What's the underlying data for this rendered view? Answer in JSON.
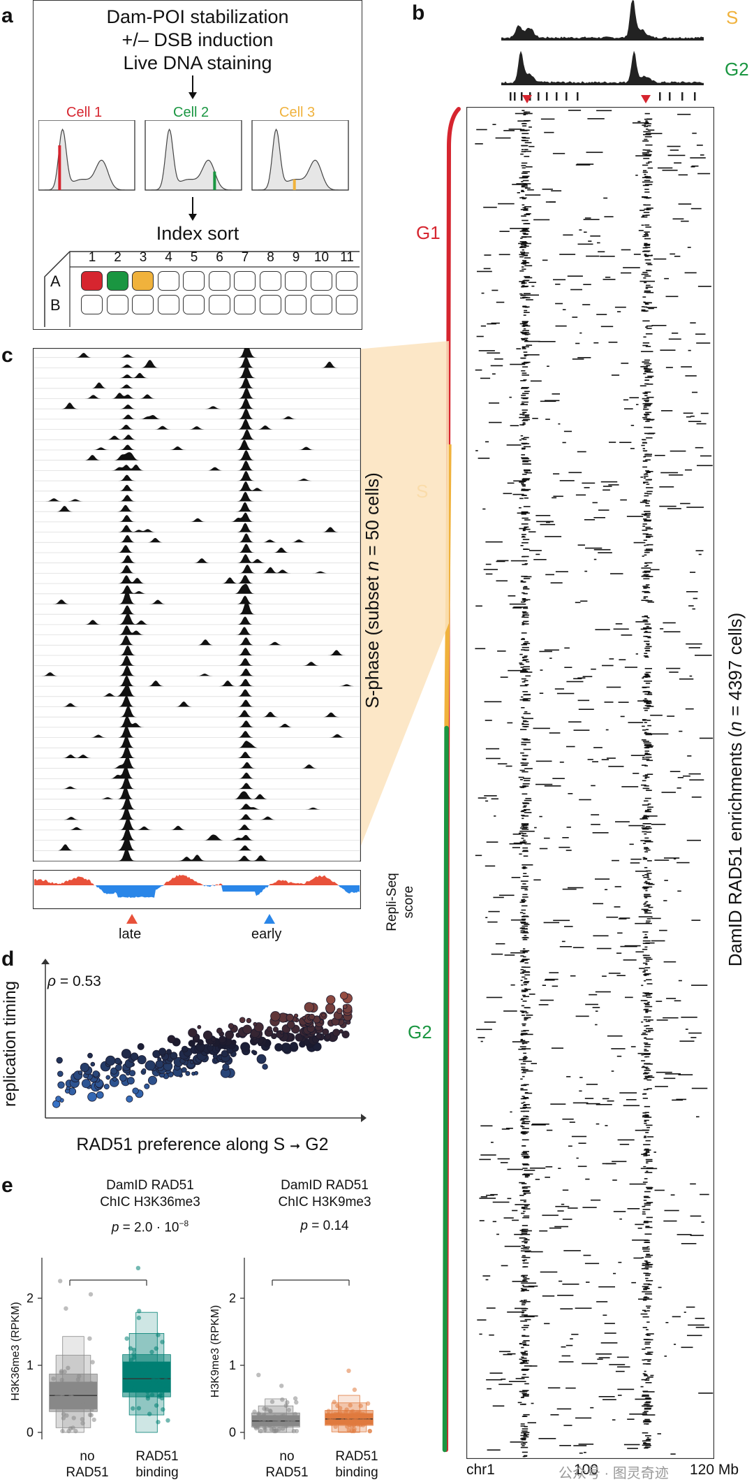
{
  "panels": {
    "a": "a",
    "b": "b",
    "c": "c",
    "d": "d",
    "e": "e"
  },
  "panel_a": {
    "step1": "Dam-POI stabilization",
    "step2": "+/– DSB induction",
    "step3": "Live DNA staining",
    "cells": [
      {
        "label": "Cell 1",
        "color": "#d6252f",
        "marker": 0.22
      },
      {
        "label": "Cell 2",
        "color": "#1a9641",
        "marker": 0.72
      },
      {
        "label": "Cell 3",
        "color": "#f0b23c",
        "marker": 0.44
      }
    ],
    "index_sort": "Index sort",
    "plate_columns": [
      "1",
      "2",
      "3",
      "4",
      "5",
      "6",
      "7",
      "8",
      "9",
      "10",
      "11"
    ],
    "plate_rows": [
      "A",
      "B"
    ]
  },
  "panel_b": {
    "phase_labels": [
      {
        "label": "S",
        "color": "#f0b23c"
      },
      {
        "label": "G2",
        "color": "#1a9641"
      }
    ],
    "bar_labels": [
      {
        "label": "G1",
        "color": "#d6252f"
      },
      {
        "label": "S",
        "color": "#f0b23c"
      },
      {
        "label": "G2",
        "color": "#1a9641"
      }
    ],
    "y_axis_label": "DamID RAD51 enrichments (n = 4397 cells)",
    "y_axis_prefix": "DamID RAD51 enrichments (",
    "y_axis_n": "n",
    "y_axis_suffix": " = 4397 cells)",
    "x_ticks": [
      "chr1",
      "100",
      "120 Mb"
    ]
  },
  "panel_c": {
    "side_label_prefix": "S-phase (subset ",
    "side_label_n": "n",
    "side_label_suffix": " = 50 cells)",
    "repli_label_1": "Repli-Seq",
    "repli_label_2": "score",
    "late": "late",
    "early": "early",
    "late_color": "#e8513a",
    "early_color": "#2a86e8"
  },
  "chart_data": [
    {
      "type": "scatter",
      "panel": "d",
      "title": "",
      "xlabel": "RAD51 preference along S → G2",
      "ylabel": "replication timing",
      "annotation": "ρ = 0.53",
      "rho_symbol": "ρ",
      "rho_value": " = 0.53",
      "xlabel_main": "RAD51 preference along S",
      "xlabel_end": "G2",
      "xlim": [
        0,
        1
      ],
      "ylim": [
        0,
        1
      ],
      "color_scale": [
        "#3b7bd4",
        "#1a1a2e",
        "#c8614a"
      ]
    },
    {
      "type": "boxplot",
      "panel": "e-left",
      "title_line1": "DamID RAD51",
      "title_line2": "ChIC H3K36me3",
      "p_prefix": "p",
      "p_value": " = 2.0 · 10",
      "p_exp": "−8",
      "ylabel": "H3K36me3 (RPKM)",
      "yticks": [
        "0",
        "1",
        "2"
      ],
      "ylim": [
        0,
        2.5
      ],
      "categories": [
        [
          "no",
          "RAD51"
        ],
        [
          "RAD51",
          "binding"
        ]
      ],
      "series": [
        {
          "name": "no RAD51",
          "median": 0.55,
          "q1": 0.35,
          "q3": 0.75,
          "color": "#888888"
        },
        {
          "name": "RAD51 binding",
          "median": 0.8,
          "q1": 0.6,
          "q3": 1.05,
          "color": "#007f73"
        }
      ]
    },
    {
      "type": "boxplot",
      "panel": "e-right",
      "title_line1": "DamID RAD51",
      "title_line2": "ChIC H3K9me3",
      "p_prefix": "p",
      "p_value": " = 0.14",
      "ylabel": "H3K9me3 (RPKM)",
      "yticks": [
        "0",
        "1",
        "2"
      ],
      "ylim": [
        0,
        2.5
      ],
      "categories": [
        [
          "no",
          "RAD51"
        ],
        [
          "RAD51",
          "binding"
        ]
      ],
      "series": [
        {
          "name": "no RAD51",
          "median": 0.17,
          "q1": 0.1,
          "q3": 0.25,
          "color": "#888888"
        },
        {
          "name": "RAD51 binding",
          "median": 0.2,
          "q1": 0.12,
          "q3": 0.28,
          "color": "#e07a3e"
        }
      ]
    }
  ],
  "watermark": "公众号 · 图灵奇迹"
}
